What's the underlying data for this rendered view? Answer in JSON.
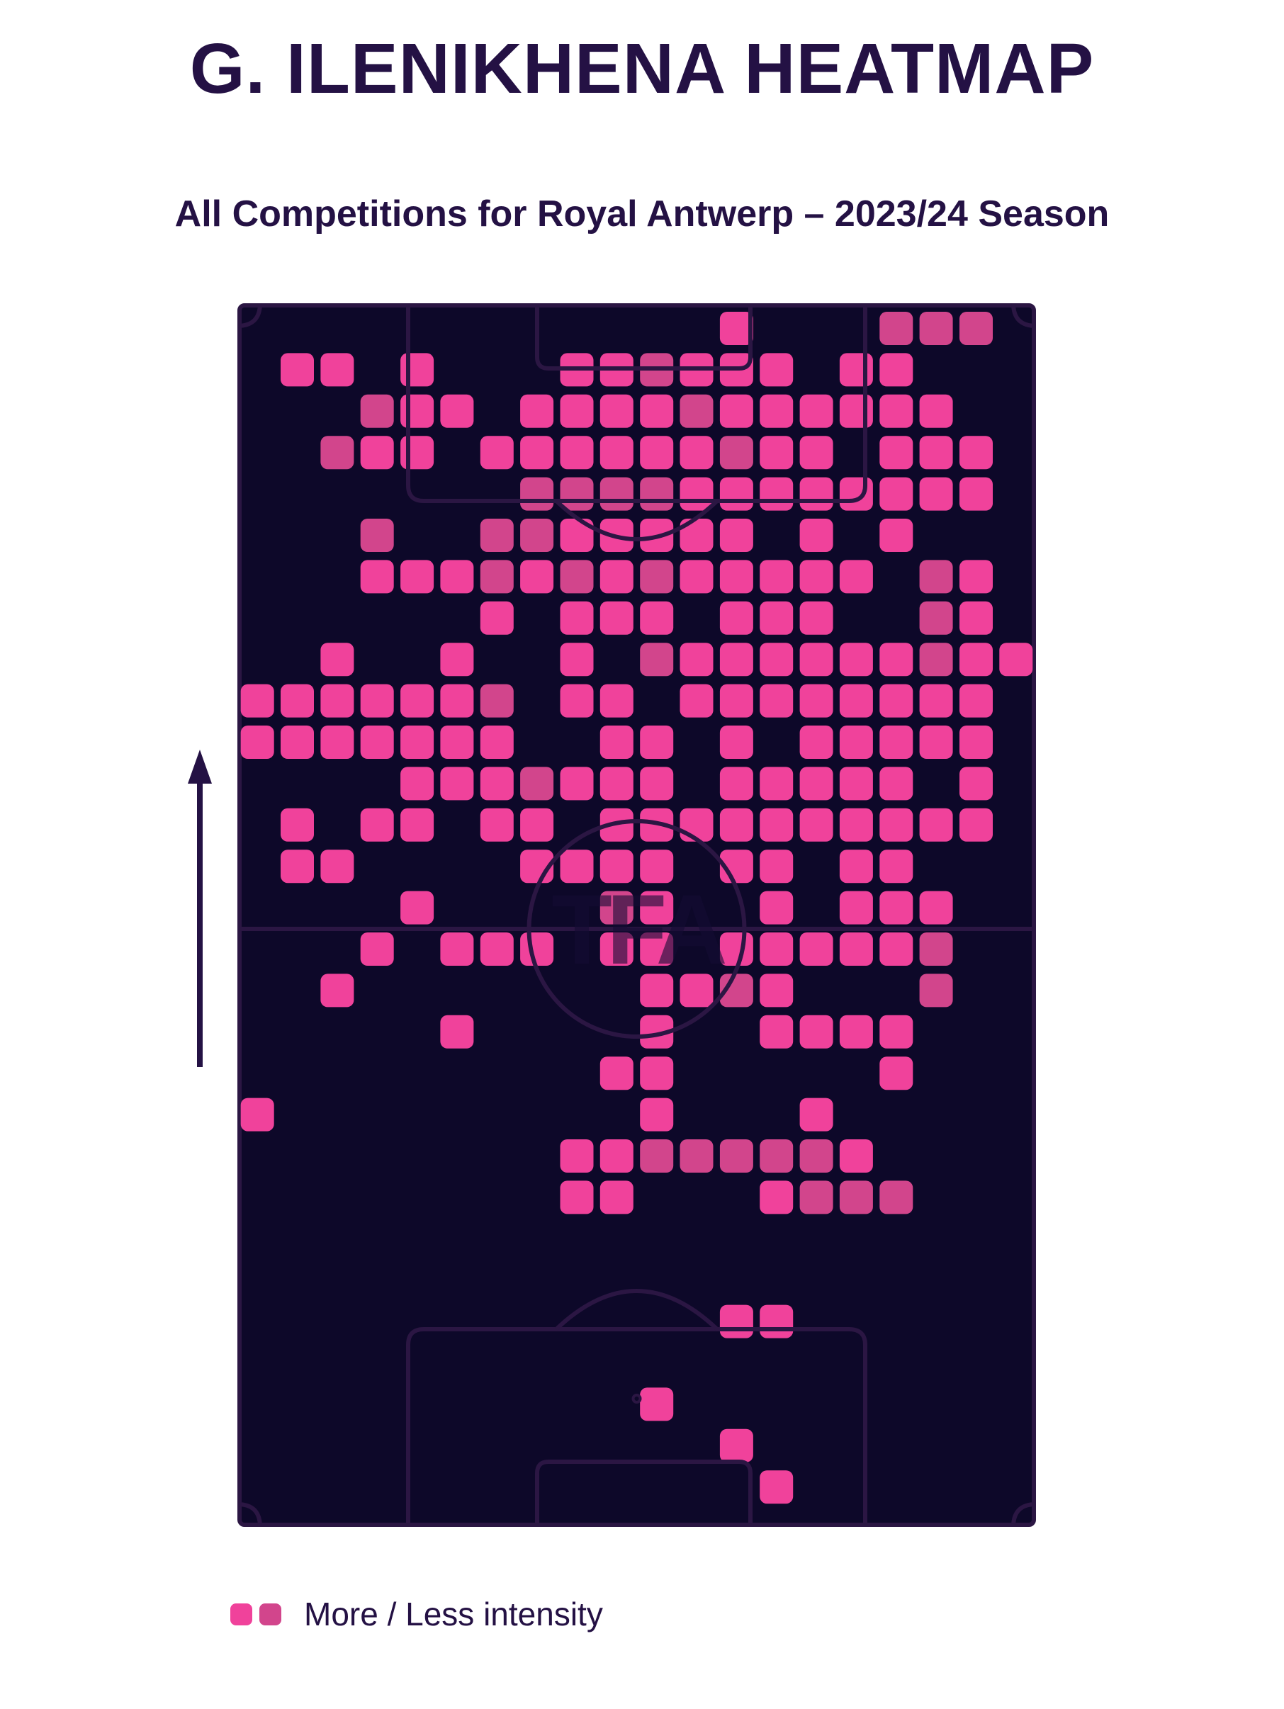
{
  "header": {
    "title": "G. ILENIKHENA HEATMAP",
    "subtitle": "All Competitions for Royal Antwerp – 2023/24 Season"
  },
  "legend": {
    "label": "More / Less intensity"
  },
  "watermark": {
    "text": "TFA"
  },
  "colors": {
    "background": "#ffffff",
    "ink": "#241144",
    "pitch_bg": "#0d0829",
    "pitch_line": "#2b1643",
    "more": "#f0429b",
    "less": "#d2458c"
  },
  "chart_data": {
    "type": "heatmap",
    "title": "G. ILENIKHENA HEATMAP",
    "subtitle": "All Competitions for Royal Antwerp – 2023/24 Season",
    "pitch": {
      "orientation": "vertical",
      "attack_direction": "up",
      "grid_cols": 20,
      "grid_rows": 29
    },
    "intensity_levels": {
      "1": "less",
      "2": "more"
    },
    "legend_label": "More / Less intensity",
    "watermark": "TFA",
    "cells": [
      [
        12,
        0,
        2
      ],
      [
        16,
        0,
        1
      ],
      [
        17,
        0,
        1
      ],
      [
        18,
        0,
        1
      ],
      [
        1,
        1,
        2
      ],
      [
        2,
        1,
        2
      ],
      [
        4,
        1,
        2
      ],
      [
        8,
        1,
        2
      ],
      [
        9,
        1,
        2
      ],
      [
        10,
        1,
        1
      ],
      [
        11,
        1,
        2
      ],
      [
        12,
        1,
        2
      ],
      [
        13,
        1,
        2
      ],
      [
        15,
        1,
        2
      ],
      [
        16,
        1,
        2
      ],
      [
        3,
        2,
        1
      ],
      [
        4,
        2,
        2
      ],
      [
        5,
        2,
        2
      ],
      [
        7,
        2,
        2
      ],
      [
        8,
        2,
        2
      ],
      [
        9,
        2,
        2
      ],
      [
        10,
        2,
        2
      ],
      [
        11,
        2,
        1
      ],
      [
        12,
        2,
        2
      ],
      [
        13,
        2,
        2
      ],
      [
        14,
        2,
        2
      ],
      [
        15,
        2,
        2
      ],
      [
        16,
        2,
        2
      ],
      [
        17,
        2,
        2
      ],
      [
        2,
        3,
        1
      ],
      [
        3,
        3,
        2
      ],
      [
        4,
        3,
        2
      ],
      [
        6,
        3,
        2
      ],
      [
        7,
        3,
        2
      ],
      [
        8,
        3,
        2
      ],
      [
        9,
        3,
        2
      ],
      [
        10,
        3,
        2
      ],
      [
        11,
        3,
        2
      ],
      [
        12,
        3,
        1
      ],
      [
        13,
        3,
        2
      ],
      [
        14,
        3,
        2
      ],
      [
        16,
        3,
        2
      ],
      [
        17,
        3,
        2
      ],
      [
        18,
        3,
        2
      ],
      [
        7,
        4,
        1
      ],
      [
        8,
        4,
        1
      ],
      [
        9,
        4,
        1
      ],
      [
        10,
        4,
        1
      ],
      [
        11,
        4,
        2
      ],
      [
        12,
        4,
        2
      ],
      [
        13,
        4,
        2
      ],
      [
        14,
        4,
        2
      ],
      [
        15,
        4,
        2
      ],
      [
        16,
        4,
        2
      ],
      [
        17,
        4,
        2
      ],
      [
        18,
        4,
        2
      ],
      [
        3,
        5,
        1
      ],
      [
        6,
        5,
        1
      ],
      [
        7,
        5,
        1
      ],
      [
        8,
        5,
        2
      ],
      [
        9,
        5,
        2
      ],
      [
        10,
        5,
        2
      ],
      [
        11,
        5,
        2
      ],
      [
        12,
        5,
        2
      ],
      [
        14,
        5,
        2
      ],
      [
        16,
        5,
        2
      ],
      [
        3,
        6,
        2
      ],
      [
        4,
        6,
        2
      ],
      [
        5,
        6,
        2
      ],
      [
        6,
        6,
        1
      ],
      [
        7,
        6,
        2
      ],
      [
        8,
        6,
        1
      ],
      [
        9,
        6,
        2
      ],
      [
        10,
        6,
        1
      ],
      [
        11,
        6,
        2
      ],
      [
        12,
        6,
        2
      ],
      [
        13,
        6,
        2
      ],
      [
        14,
        6,
        2
      ],
      [
        15,
        6,
        2
      ],
      [
        17,
        6,
        1
      ],
      [
        18,
        6,
        2
      ],
      [
        6,
        7,
        2
      ],
      [
        8,
        7,
        2
      ],
      [
        9,
        7,
        2
      ],
      [
        10,
        7,
        2
      ],
      [
        12,
        7,
        2
      ],
      [
        13,
        7,
        2
      ],
      [
        14,
        7,
        2
      ],
      [
        17,
        7,
        1
      ],
      [
        18,
        7,
        2
      ],
      [
        2,
        8,
        2
      ],
      [
        5,
        8,
        2
      ],
      [
        8,
        8,
        2
      ],
      [
        10,
        8,
        1
      ],
      [
        11,
        8,
        2
      ],
      [
        12,
        8,
        2
      ],
      [
        13,
        8,
        2
      ],
      [
        14,
        8,
        2
      ],
      [
        15,
        8,
        2
      ],
      [
        16,
        8,
        2
      ],
      [
        17,
        8,
        1
      ],
      [
        18,
        8,
        2
      ],
      [
        19,
        8,
        2
      ],
      [
        0,
        9,
        2
      ],
      [
        1,
        9,
        2
      ],
      [
        2,
        9,
        2
      ],
      [
        3,
        9,
        2
      ],
      [
        4,
        9,
        2
      ],
      [
        5,
        9,
        2
      ],
      [
        6,
        9,
        1
      ],
      [
        8,
        9,
        2
      ],
      [
        9,
        9,
        2
      ],
      [
        11,
        9,
        2
      ],
      [
        12,
        9,
        2
      ],
      [
        13,
        9,
        2
      ],
      [
        14,
        9,
        2
      ],
      [
        15,
        9,
        2
      ],
      [
        16,
        9,
        2
      ],
      [
        17,
        9,
        2
      ],
      [
        18,
        9,
        2
      ],
      [
        0,
        10,
        2
      ],
      [
        1,
        10,
        2
      ],
      [
        2,
        10,
        2
      ],
      [
        3,
        10,
        2
      ],
      [
        4,
        10,
        2
      ],
      [
        5,
        10,
        2
      ],
      [
        6,
        10,
        2
      ],
      [
        9,
        10,
        2
      ],
      [
        10,
        10,
        2
      ],
      [
        12,
        10,
        2
      ],
      [
        14,
        10,
        2
      ],
      [
        15,
        10,
        2
      ],
      [
        16,
        10,
        2
      ],
      [
        17,
        10,
        2
      ],
      [
        18,
        10,
        2
      ],
      [
        4,
        11,
        2
      ],
      [
        5,
        11,
        2
      ],
      [
        6,
        11,
        2
      ],
      [
        7,
        11,
        1
      ],
      [
        8,
        11,
        2
      ],
      [
        9,
        11,
        2
      ],
      [
        10,
        11,
        2
      ],
      [
        12,
        11,
        2
      ],
      [
        13,
        11,
        2
      ],
      [
        14,
        11,
        2
      ],
      [
        15,
        11,
        2
      ],
      [
        16,
        11,
        2
      ],
      [
        18,
        11,
        2
      ],
      [
        1,
        12,
        2
      ],
      [
        3,
        12,
        2
      ],
      [
        4,
        12,
        2
      ],
      [
        6,
        12,
        2
      ],
      [
        7,
        12,
        2
      ],
      [
        9,
        12,
        2
      ],
      [
        10,
        12,
        2
      ],
      [
        11,
        12,
        2
      ],
      [
        12,
        12,
        2
      ],
      [
        13,
        12,
        2
      ],
      [
        14,
        12,
        2
      ],
      [
        15,
        12,
        2
      ],
      [
        16,
        12,
        2
      ],
      [
        17,
        12,
        2
      ],
      [
        18,
        12,
        2
      ],
      [
        1,
        13,
        2
      ],
      [
        2,
        13,
        2
      ],
      [
        7,
        13,
        2
      ],
      [
        8,
        13,
        2
      ],
      [
        9,
        13,
        2
      ],
      [
        10,
        13,
        2
      ],
      [
        12,
        13,
        2
      ],
      [
        13,
        13,
        2
      ],
      [
        15,
        13,
        2
      ],
      [
        16,
        13,
        2
      ],
      [
        4,
        14,
        2
      ],
      [
        9,
        14,
        1
      ],
      [
        10,
        14,
        2
      ],
      [
        13,
        14,
        2
      ],
      [
        15,
        14,
        2
      ],
      [
        16,
        14,
        2
      ],
      [
        17,
        14,
        2
      ],
      [
        3,
        15,
        2
      ],
      [
        5,
        15,
        2
      ],
      [
        6,
        15,
        2
      ],
      [
        7,
        15,
        2
      ],
      [
        9,
        15,
        2
      ],
      [
        10,
        15,
        2
      ],
      [
        12,
        15,
        2
      ],
      [
        13,
        15,
        2
      ],
      [
        14,
        15,
        2
      ],
      [
        15,
        15,
        2
      ],
      [
        16,
        15,
        2
      ],
      [
        17,
        15,
        1
      ],
      [
        2,
        16,
        2
      ],
      [
        10,
        16,
        2
      ],
      [
        11,
        16,
        2
      ],
      [
        12,
        16,
        1
      ],
      [
        13,
        16,
        2
      ],
      [
        17,
        16,
        1
      ],
      [
        5,
        17,
        2
      ],
      [
        10,
        17,
        2
      ],
      [
        13,
        17,
        2
      ],
      [
        14,
        17,
        2
      ],
      [
        15,
        17,
        2
      ],
      [
        16,
        17,
        2
      ],
      [
        9,
        18,
        2
      ],
      [
        10,
        18,
        2
      ],
      [
        16,
        18,
        2
      ],
      [
        0,
        19,
        2
      ],
      [
        10,
        19,
        2
      ],
      [
        14,
        19,
        2
      ],
      [
        8,
        20,
        2
      ],
      [
        9,
        20,
        2
      ],
      [
        10,
        20,
        1
      ],
      [
        11,
        20,
        1
      ],
      [
        12,
        20,
        1
      ],
      [
        13,
        20,
        1
      ],
      [
        14,
        20,
        1
      ],
      [
        15,
        20,
        2
      ],
      [
        8,
        21,
        2
      ],
      [
        9,
        21,
        2
      ],
      [
        13,
        21,
        2
      ],
      [
        14,
        21,
        1
      ],
      [
        15,
        21,
        1
      ],
      [
        16,
        21,
        1
      ],
      [
        12,
        24,
        2
      ],
      [
        13,
        24,
        2
      ],
      [
        10,
        26,
        2
      ],
      [
        12,
        27,
        2
      ],
      [
        13,
        28,
        2
      ]
    ]
  }
}
